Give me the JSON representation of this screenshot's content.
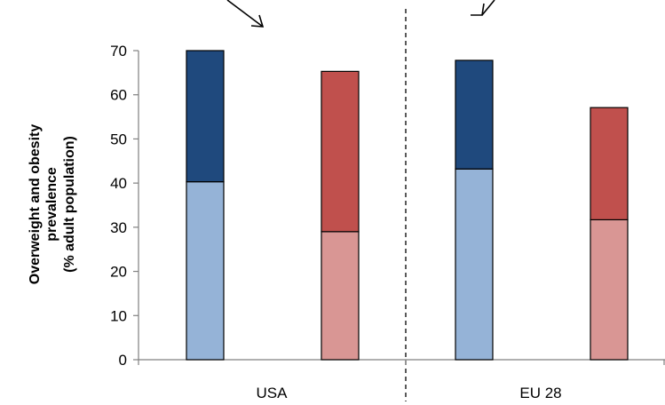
{
  "chart_data": {
    "type": "bar",
    "categories": [
      "USA",
      "EU 28"
    ],
    "ylabel_lines": [
      "Overweight and obesity",
      "prevalence",
      "(% adult population)"
    ],
    "ylim": [
      0,
      70
    ],
    "yticks": [
      0,
      10,
      20,
      30,
      40,
      50,
      60,
      70
    ],
    "grid": false,
    "legend": "none",
    "bar_groups": [
      {
        "category": "USA",
        "bars": [
          {
            "segments": [
              {
                "value": 40.3,
                "color": "#95b3d7"
              },
              {
                "value": 29.7,
                "color": "#1f497d"
              }
            ]
          },
          {
            "segments": [
              {
                "value": 29.0,
                "color": "#d99694"
              },
              {
                "value": 36.3,
                "color": "#c0504d"
              }
            ]
          }
        ]
      },
      {
        "category": "EU 28",
        "bars": [
          {
            "segments": [
              {
                "value": 43.2,
                "color": "#95b3d7"
              },
              {
                "value": 24.6,
                "color": "#1f497d"
              }
            ]
          },
          {
            "segments": [
              {
                "value": 31.7,
                "color": "#d99694"
              },
              {
                "value": 25.4,
                "color": "#c0504d"
              }
            ]
          }
        ]
      }
    ]
  }
}
